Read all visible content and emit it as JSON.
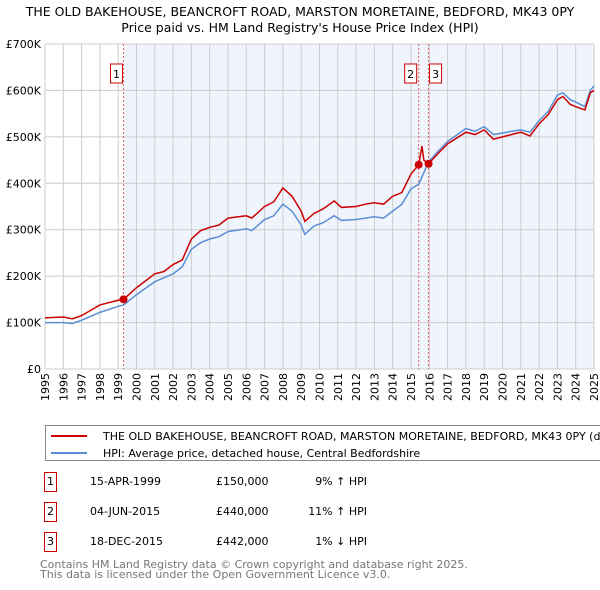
{
  "title": "THE OLD BAKEHOUSE, BEANCROFT ROAD, MARSTON MORETAINE, BEDFORD, MK43 0PY",
  "subtitle": "Price paid vs. HM Land Registry's House Price Index (HPI)",
  "chart_data": {
    "type": "line",
    "xlim": [
      1995,
      2025
    ],
    "ylim": [
      0,
      700000
    ],
    "yticks": [
      {
        "v": 0,
        "l": "£0"
      },
      {
        "v": 100000,
        "l": "£100K"
      },
      {
        "v": 200000,
        "l": "£200K"
      },
      {
        "v": 300000,
        "l": "£300K"
      },
      {
        "v": 400000,
        "l": "£400K"
      },
      {
        "v": 500000,
        "l": "£500K"
      },
      {
        "v": 600000,
        "l": "£600K"
      },
      {
        "v": 700000,
        "l": "£700K"
      }
    ],
    "xticks": [
      "1995",
      "1996",
      "1997",
      "1998",
      "1999",
      "2000",
      "2001",
      "2002",
      "2003",
      "2004",
      "2005",
      "2006",
      "2007",
      "2008",
      "2009",
      "2010",
      "2011",
      "2012",
      "2013",
      "2014",
      "2015",
      "2016",
      "2017",
      "2018",
      "2019",
      "2020",
      "2021",
      "2022",
      "2023",
      "2024",
      "2025"
    ],
    "series": [
      {
        "name": "THE OLD BAKEHOUSE, BEANCROFT ROAD, MARSTON MORETAINE, BEDFORD, MK43 0PY (detached house)",
        "color": "#cc0000",
        "x": [
          1995,
          1996,
          1996.5,
          1997,
          1998,
          1999,
          1999.29,
          2000,
          2001,
          2001.5,
          2002,
          2002.5,
          2003,
          2003.5,
          2004,
          2004.5,
          2005,
          2006,
          2006.3,
          2007,
          2007.5,
          2008,
          2008.5,
          2009,
          2009.2,
          2009.7,
          2010.2,
          2010.8,
          2011.2,
          2012,
          2012.5,
          2013,
          2013.5,
          2014,
          2014.5,
          2015,
          2015.42,
          2015.6,
          2015.7,
          2015.96,
          2016.5,
          2017,
          2018,
          2018.5,
          2019,
          2019.5,
          2020,
          2020.5,
          2021,
          2021.5,
          2022,
          2022.5,
          2023,
          2023.3,
          2023.7,
          2024,
          2024.5,
          2024.8,
          2025
        ],
        "y": [
          110000,
          112000,
          108000,
          115000,
          138000,
          148000,
          150000,
          175000,
          205000,
          210000,
          225000,
          235000,
          280000,
          298000,
          305000,
          310000,
          325000,
          330000,
          325000,
          350000,
          360000,
          390000,
          372000,
          340000,
          318000,
          335000,
          345000,
          362000,
          348000,
          350000,
          355000,
          358000,
          355000,
          372000,
          380000,
          420000,
          440000,
          480000,
          450000,
          442000,
          465000,
          485000,
          510000,
          505000,
          515000,
          495000,
          500000,
          505000,
          510000,
          502000,
          528000,
          548000,
          580000,
          587000,
          570000,
          565000,
          558000,
          595000,
          600000
        ]
      },
      {
        "name": "HPI: Average price, detached house, Central Bedfordshire",
        "color": "#5b8fd4",
        "x": [
          1995,
          1996,
          1996.5,
          1997,
          1998,
          1999,
          1999.29,
          2000,
          2001,
          2002,
          2002.5,
          2003,
          2003.5,
          2004,
          2004.5,
          2005,
          2006,
          2006.3,
          2007,
          2007.5,
          2008,
          2008.5,
          2009,
          2009.2,
          2009.7,
          2010.2,
          2010.8,
          2011.2,
          2012,
          2012.5,
          2013,
          2013.5,
          2014,
          2014.5,
          2015,
          2015.42,
          2015.96,
          2016.5,
          2017,
          2018,
          2018.5,
          2019,
          2019.5,
          2020,
          2020.5,
          2021,
          2021.5,
          2022,
          2022.5,
          2023,
          2023.3,
          2023.7,
          2024,
          2024.5,
          2024.8,
          2025
        ],
        "y": [
          100000,
          100000,
          98000,
          105000,
          122000,
          135000,
          138000,
          160000,
          188000,
          205000,
          220000,
          258000,
          272000,
          280000,
          285000,
          296000,
          302000,
          298000,
          322000,
          330000,
          355000,
          340000,
          310000,
          290000,
          308000,
          315000,
          330000,
          320000,
          322000,
          325000,
          328000,
          325000,
          340000,
          355000,
          388000,
          398000,
          446000,
          470000,
          490000,
          518000,
          512000,
          522000,
          505000,
          508000,
          512000,
          515000,
          510000,
          535000,
          555000,
          590000,
          595000,
          580000,
          575000,
          565000,
          600000,
          610000
        ]
      }
    ],
    "sales": [
      {
        "n": "1",
        "x": 1999.29,
        "y": 150000
      },
      {
        "n": "2",
        "x": 2015.42,
        "y": 440000
      },
      {
        "n": "3",
        "x": 2015.96,
        "y": 442000
      }
    ]
  },
  "legend": {
    "red": "THE OLD BAKEHOUSE, BEANCROFT ROAD, MARSTON MORETAINE, BEDFORD, MK43 0PY (detached house)",
    "blue": "HPI: Average price, detached house, Central Bedfordshire"
  },
  "table": [
    {
      "n": "1",
      "date": "15-APR-1999",
      "price": "£150,000",
      "hpi": "9% ↑ HPI"
    },
    {
      "n": "2",
      "date": "04-JUN-2015",
      "price": "£440,000",
      "hpi": "11% ↑ HPI"
    },
    {
      "n": "3",
      "date": "18-DEC-2015",
      "price": "£442,000",
      "hpi": "1% ↓ HPI"
    }
  ],
  "footer": {
    "line1": "Contains HM Land Registry data © Crown copyright and database right 2025.",
    "line2": "This data is licensed under the Open Government Licence v3.0."
  }
}
